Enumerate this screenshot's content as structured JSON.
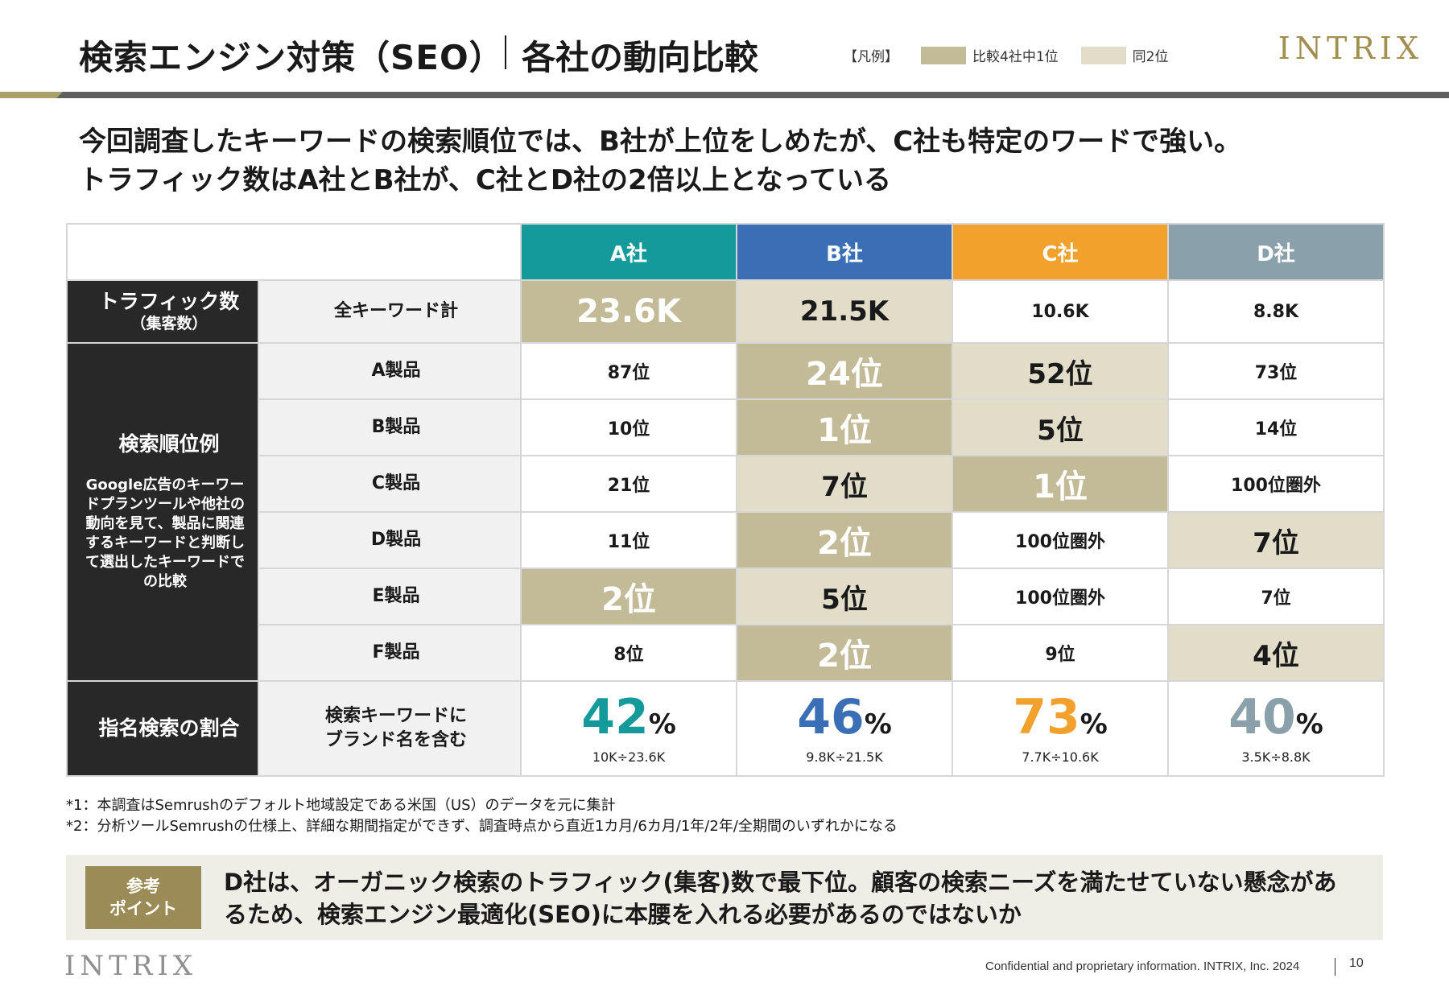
{
  "header": {
    "title": "検索エンジン対策（SEO）",
    "subtitle": "各社の動向比較",
    "legend": {
      "label": "【凡例】",
      "first": "比較4社中1位",
      "second": "同2位",
      "first_color": "#c3bb97",
      "second_color": "#e1ddc9"
    },
    "logo": "INTRIX"
  },
  "lead": {
    "line1": "今回調査したキーワードの検索順位では、B社が上位をしめたが、C社も特定のワードで強い。",
    "line2": "トラフィック数はA社とB社が、C社とD社の2倍以上となっている"
  },
  "table": {
    "companies": [
      {
        "name": "A社",
        "color": "#149a9b"
      },
      {
        "name": "B社",
        "color": "#3a6fb6"
      },
      {
        "name": "C社",
        "color": "#f2a12c"
      },
      {
        "name": "D社",
        "color": "#8aa0aa"
      }
    ],
    "traffic": {
      "category": "トラフィック数",
      "category_sub": "（集客数）",
      "label": "全キーワード計",
      "values": [
        "23.6K",
        "21.5K",
        "10.6K",
        "8.8K"
      ],
      "highlight": [
        "first",
        "second",
        "none",
        "none"
      ]
    },
    "ranking": {
      "category": "検索順位例",
      "note": "Google広告のキーワードプランツールや他社の動向を見て、製品に関連するキーワードと判断して選出したキーワードでの比較",
      "rows": [
        {
          "label": "A製品",
          "values": [
            "87位",
            "24位",
            "52位",
            "73位"
          ],
          "highlight": [
            "none",
            "first",
            "second",
            "none"
          ]
        },
        {
          "label": "B製品",
          "values": [
            "10位",
            "1位",
            "5位",
            "14位"
          ],
          "highlight": [
            "none",
            "first",
            "second",
            "none"
          ]
        },
        {
          "label": "C製品",
          "values": [
            "21位",
            "7位",
            "1位",
            "100位圏外"
          ],
          "highlight": [
            "none",
            "second",
            "first",
            "none"
          ]
        },
        {
          "label": "D製品",
          "values": [
            "11位",
            "2位",
            "100位圏外",
            "7位"
          ],
          "highlight": [
            "none",
            "first",
            "none",
            "second"
          ]
        },
        {
          "label": "E製品",
          "values": [
            "2位",
            "5位",
            "100位圏外",
            "7位"
          ],
          "highlight": [
            "first",
            "second",
            "none",
            "none"
          ]
        },
        {
          "label": "F製品",
          "values": [
            "8位",
            "2位",
            "9位",
            "4位"
          ],
          "highlight": [
            "none",
            "first",
            "none",
            "second"
          ]
        }
      ]
    },
    "share": {
      "category": "指名検索の割合",
      "label_line1": "検索キーワードに",
      "label_line2": "ブランド名を含む",
      "unit": "%",
      "values": [
        "42",
        "46",
        "73",
        "40"
      ],
      "calcs": [
        "10K÷23.6K",
        "9.8K÷21.5K",
        "7.7K÷10.6K",
        "3.5K÷8.8K"
      ]
    }
  },
  "footnotes": {
    "note1": "*1：本調査はSemrushのデフォルト地域設定である米国（US）のデータを元に集計",
    "note2": "*2：分析ツールSemrushの仕様上、詳細な期間指定ができず、調査時点から直近1カ月/6カ月/1年/2年/全期間のいずれかになる"
  },
  "point": {
    "badge_line1": "参考",
    "badge_line2": "ポイント",
    "line1": "D社は、オーガニック検索のトラフィック(集客)数で最下位。顧客の検索ニーズを満たせていない懸念があ",
    "line2": "るため、検索エンジン最適化(SEO)に本腰を入れる必要があるのではないか"
  },
  "footer": {
    "logo": "INTRIX",
    "confidential": "Confidential and proprietary information. INTRIX, Inc. 2024",
    "page": "10"
  }
}
